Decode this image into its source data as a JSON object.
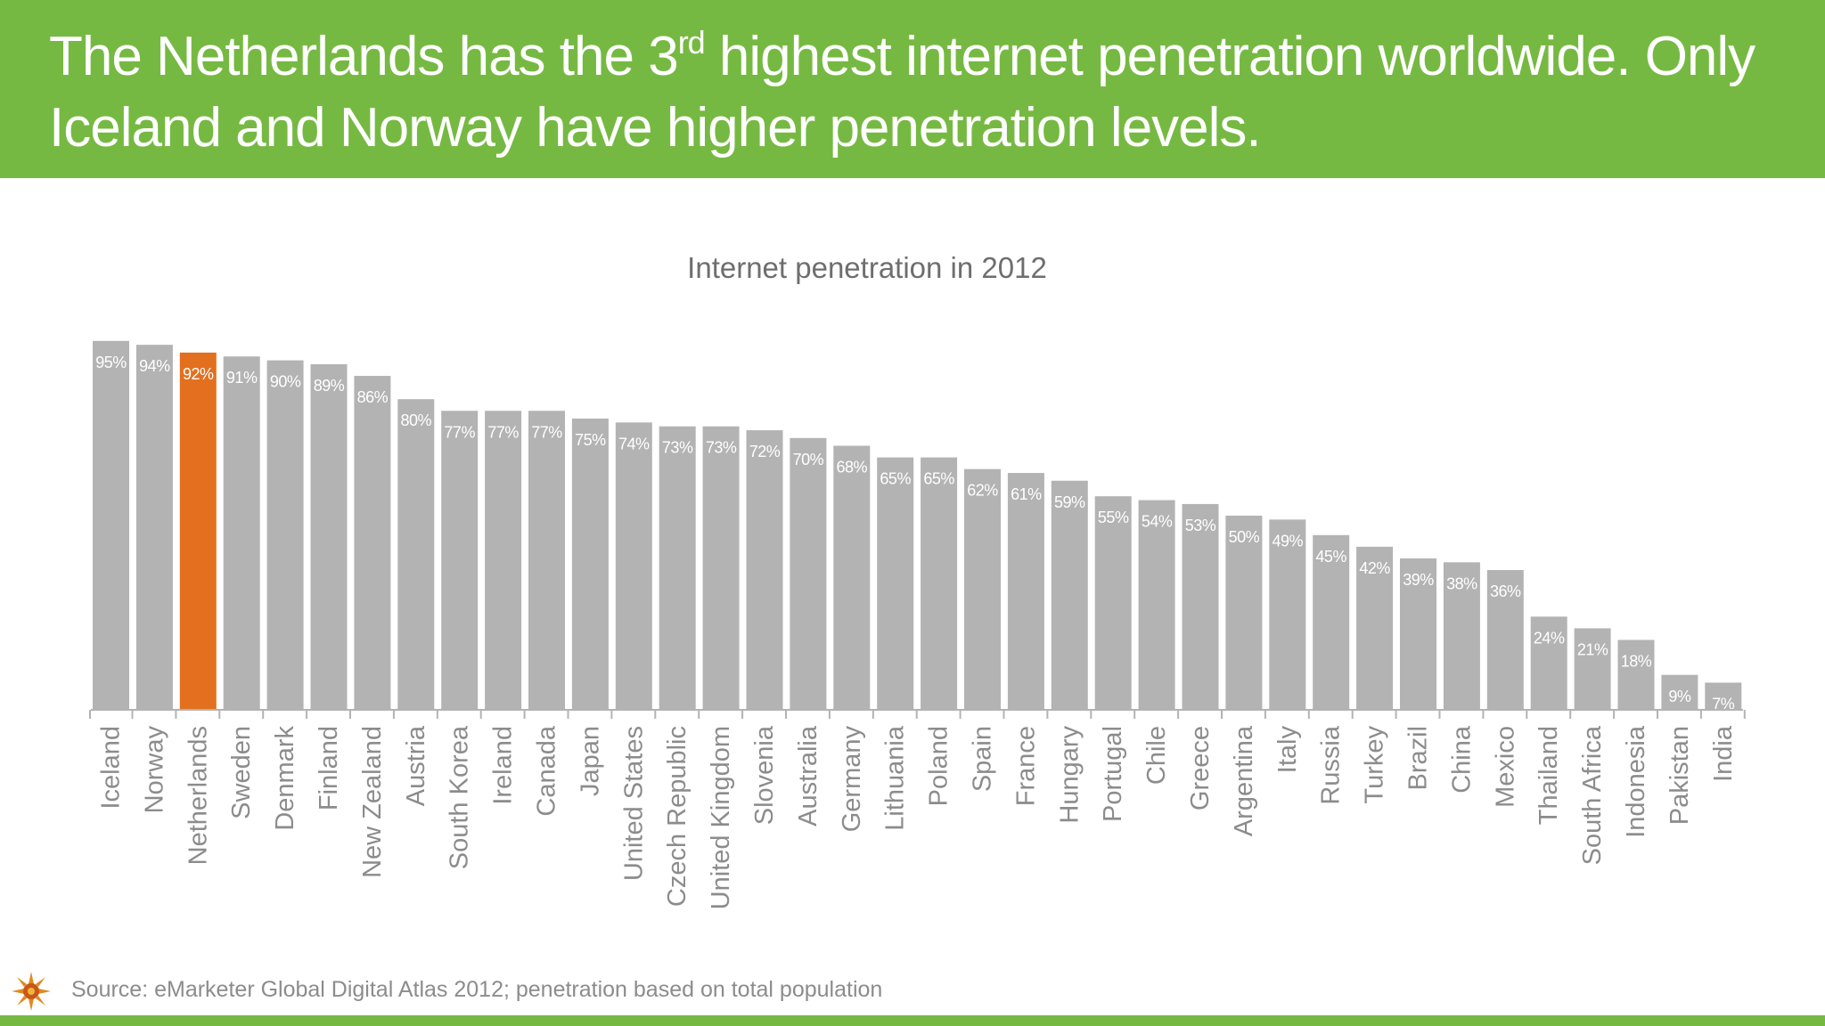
{
  "header": {
    "headline_part1": "The Netherlands has the 3",
    "headline_sup": "rd",
    "headline_part2": " highest internet penetration worldwide. Only Iceland and Norway have higher penetration levels."
  },
  "footer": {
    "source": "Source: eMarketer Global Digital Atlas 2012; penetration based on total population",
    "logo_icon": "sunburst-logo-icon"
  },
  "colors": {
    "header_green": "#76b942",
    "bar_gray": "#b3b3b3",
    "highlight_orange": "#e2701f",
    "label_on_bar": "#ffffff",
    "axis_text": "#8c8c8c"
  },
  "chart_data": {
    "type": "bar",
    "title": "Internet penetration in 2012",
    "xlabel": "",
    "ylabel": "",
    "ylim": [
      0,
      100
    ],
    "value_format": "percent",
    "highlight": "Netherlands",
    "categories": [
      "Iceland",
      "Norway",
      "Netherlands",
      "Sweden",
      "Denmark",
      "Finland",
      "New Zealand",
      "Austria",
      "South Korea",
      "Ireland",
      "Canada",
      "Japan",
      "United States",
      "Czech Republic",
      "United Kingdom",
      "Slovenia",
      "Australia",
      "Germany",
      "Lithuania",
      "Poland",
      "Spain",
      "France",
      "Hungary",
      "Portugal",
      "Chile",
      "Greece",
      "Argentina",
      "Italy",
      "Russia",
      "Turkey",
      "Brazil",
      "China",
      "Mexico",
      "Thailand",
      "South Africa",
      "Indonesia",
      "Pakistan",
      "India"
    ],
    "values": [
      95,
      94,
      92,
      91,
      90,
      89,
      86,
      80,
      77,
      77,
      77,
      75,
      74,
      73,
      73,
      72,
      70,
      68,
      65,
      65,
      62,
      61,
      59,
      55,
      54,
      53,
      50,
      49,
      45,
      42,
      39,
      38,
      36,
      24,
      21,
      18,
      9,
      7
    ],
    "data_labels": [
      "95%",
      "94%",
      "92%",
      "91%",
      "90%",
      "89%",
      "86%",
      "80%",
      "77%",
      "77%",
      "77%",
      "75%",
      "74%",
      "73%",
      "73%",
      "72%",
      "70%",
      "68%",
      "65%",
      "65%",
      "62%",
      "61%",
      "59%",
      "55%",
      "54%",
      "53%",
      "50%",
      "49%",
      "45%",
      "42%",
      "39%",
      "38%",
      "36%",
      "24%",
      "21%",
      "18%",
      "9%",
      "7%"
    ]
  }
}
